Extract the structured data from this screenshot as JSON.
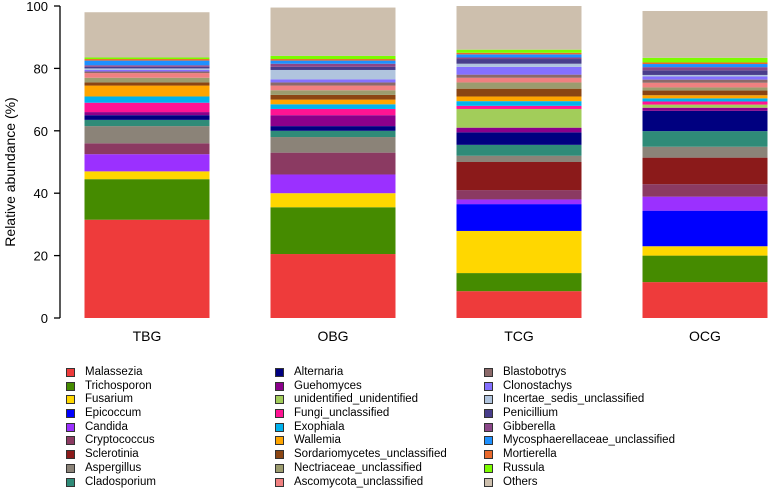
{
  "chart_data": {
    "type": "bar",
    "stacked": true,
    "title": "",
    "xlabel": "",
    "ylabel": "Relative abundance (%)",
    "ylim": [
      0,
      100
    ],
    "yticks": [
      0,
      20,
      40,
      60,
      80,
      100
    ],
    "categories": [
      "TBG",
      "OBG",
      "TCG",
      "OCG"
    ],
    "legend_position": "bottom",
    "series": [
      {
        "name": "Malassezia",
        "color": "#EE3B3B",
        "values": [
          31.5,
          20.5,
          8.6,
          11.5
        ]
      },
      {
        "name": "Trichosporon",
        "color": "#458B00",
        "values": [
          13.0,
          15.0,
          5.8,
          8.5
        ]
      },
      {
        "name": "Fusarium",
        "color": "#FFD700",
        "values": [
          2.5,
          4.5,
          13.5,
          3.0
        ]
      },
      {
        "name": "Epicoccum",
        "color": "#0000FF",
        "values": [
          0.0,
          0.0,
          8.6,
          11.4
        ]
      },
      {
        "name": "Candida",
        "color": "#9B30FF",
        "values": [
          5.5,
          6.0,
          1.5,
          4.5
        ]
      },
      {
        "name": "Cryptococcus",
        "color": "#8B3A62",
        "values": [
          3.5,
          7.0,
          3.0,
          4.0
        ]
      },
      {
        "name": "Sclerotinia",
        "color": "#8B1A1A",
        "values": [
          0.0,
          0.0,
          9.0,
          8.5
        ]
      },
      {
        "name": "Aspergillus",
        "color": "#8B8378",
        "values": [
          5.5,
          5.0,
          2.0,
          3.5
        ]
      },
      {
        "name": "Cladosporium",
        "color": "#2F8B78",
        "values": [
          2.0,
          2.0,
          3.5,
          5.0
        ]
      },
      {
        "name": "Alternaria",
        "color": "#000080",
        "values": [
          1.5,
          1.5,
          4.0,
          6.5
        ]
      },
      {
        "name": "Guehomyces",
        "color": "#8B008B",
        "values": [
          1.0,
          3.5,
          1.5,
          1.0
        ]
      },
      {
        "name": "unidentified_unidentified",
        "color": "#A2CD5A",
        "values": [
          0.0,
          0.0,
          6.0,
          1.0
        ]
      },
      {
        "name": "Fungi_unclassified",
        "color": "#FF1493",
        "values": [
          3.0,
          2.0,
          1.0,
          1.0
        ]
      },
      {
        "name": "Exophiala",
        "color": "#00B2EE",
        "values": [
          2.0,
          1.5,
          1.5,
          1.0
        ]
      },
      {
        "name": "Wallemia",
        "color": "#FFA500",
        "values": [
          3.5,
          1.5,
          1.5,
          1.0
        ]
      },
      {
        "name": "Sordariomycetes_unclassified",
        "color": "#8B4513",
        "values": [
          1.0,
          1.5,
          2.5,
          1.5
        ]
      },
      {
        "name": "Nectriaceae_unclassified",
        "color": "#9C9C6E",
        "values": [
          1.5,
          1.5,
          2.0,
          1.0
        ]
      },
      {
        "name": "Ascomycota_unclassified",
        "color": "#F08080",
        "values": [
          1.5,
          1.5,
          1.5,
          1.5
        ]
      },
      {
        "name": "Blastobotrys",
        "color": "#8B6969",
        "values": [
          0.5,
          1.0,
          1.0,
          1.0
        ]
      },
      {
        "name": "Clonostachys",
        "color": "#8470FF",
        "values": [
          0.5,
          1.0,
          2.5,
          1.0
        ]
      },
      {
        "name": "Incertae_sedis_unclassified",
        "color": "#B0C4DE",
        "values": [
          0.5,
          3.0,
          1.0,
          0.5
        ]
      },
      {
        "name": "Penicillium",
        "color": "#483D8B",
        "values": [
          0.5,
          1.0,
          1.5,
          1.5
        ]
      },
      {
        "name": "Gibberella",
        "color": "#8B4789",
        "values": [
          0.5,
          1.0,
          0.5,
          1.0
        ]
      },
      {
        "name": "Mycosphaerellaceae_unclassified",
        "color": "#1E90FF",
        "values": [
          1.5,
          1.0,
          1.0,
          1.0
        ]
      },
      {
        "name": "Mortierella",
        "color": "#E9692C",
        "values": [
          0.5,
          0.5,
          0.5,
          0.5
        ]
      },
      {
        "name": "Russula",
        "color": "#7CFC00",
        "values": [
          0.5,
          1.0,
          1.0,
          1.5
        ]
      },
      {
        "name": "Others",
        "color": "#CDBFAD",
        "values": [
          14.5,
          15.5,
          14.0,
          15.0
        ]
      }
    ]
  }
}
